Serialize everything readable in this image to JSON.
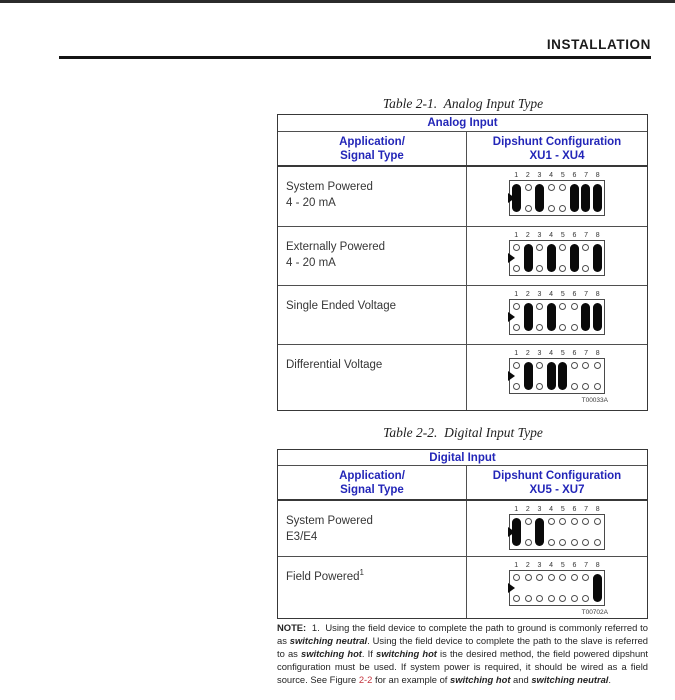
{
  "page": {
    "header": "INSTALLATION"
  },
  "colors": {
    "header_blue": "#2326b8",
    "link_red": "#c2343d",
    "ink": "#2e2e2e"
  },
  "tables": [
    {
      "caption": "Table 2-1.  Analog Input Type",
      "title": "Analog Input",
      "col1_header": [
        "Application/",
        "Signal Type"
      ],
      "col2_header": [
        "Dipshunt Configuration",
        "XU1 - XU4"
      ],
      "pin_numbers": [
        "1",
        "2",
        "3",
        "4",
        "5",
        "6",
        "7",
        "8"
      ],
      "rows": [
        {
          "label": [
            "System Powered",
            "4 - 20 mA"
          ],
          "pins": [
            1,
            0,
            1,
            0,
            0,
            1,
            1,
            1
          ],
          "artwork": ""
        },
        {
          "label": [
            "Externally Powered",
            "4 - 20 mA"
          ],
          "pins": [
            0,
            1,
            0,
            1,
            0,
            1,
            0,
            1
          ],
          "artwork": ""
        },
        {
          "label": [
            "Single Ended Voltage"
          ],
          "pins": [
            0,
            1,
            0,
            1,
            0,
            0,
            1,
            1
          ],
          "artwork": ""
        },
        {
          "label": [
            "Differential Voltage"
          ],
          "pins": [
            0,
            1,
            0,
            1,
            1,
            0,
            0,
            0
          ],
          "artwork": "T00033A"
        }
      ]
    },
    {
      "caption": "Table 2-2.  Digital Input Type",
      "title": "Digital Input",
      "col1_header": [
        "Application/",
        "Signal Type"
      ],
      "col2_header": [
        "Dipshunt Configuration",
        "XU5 - XU7"
      ],
      "pin_numbers": [
        "1",
        "2",
        "3",
        "4",
        "5",
        "6",
        "7",
        "8"
      ],
      "rows": [
        {
          "label": [
            "System Powered",
            "E3/E4"
          ],
          "pins": [
            1,
            0,
            1,
            0,
            0,
            0,
            0,
            0
          ],
          "artwork": ""
        },
        {
          "label": [
            {
              "text": "Field Powered",
              "sup": "1"
            }
          ],
          "pins": [
            0,
            0,
            0,
            0,
            0,
            0,
            0,
            1
          ],
          "artwork": "T00702A"
        }
      ]
    }
  ],
  "note": {
    "segments": [
      {
        "t": "NOTE:",
        "s": "bold"
      },
      {
        "t": "  1.  Using the field device to complete the path to ground is commonly referred to as ",
        "s": "plain"
      },
      {
        "t": "switching neutral",
        "s": "bi"
      },
      {
        "t": ". Using the field device to complete the path to the slave is referred to as ",
        "s": "plain"
      },
      {
        "t": "switching hot",
        "s": "bi"
      },
      {
        "t": ". If ",
        "s": "plain"
      },
      {
        "t": "switching hot",
        "s": "bi"
      },
      {
        "t": " is the desired method, the field powered dipshunt configuration must be used. If system power is required, it should be wired as a field source. See Figure ",
        "s": "plain"
      },
      {
        "t": "2-2",
        "s": "red"
      },
      {
        "t": " for an example of ",
        "s": "plain"
      },
      {
        "t": "switching hot",
        "s": "bi"
      },
      {
        "t": " and ",
        "s": "plain"
      },
      {
        "t": "switching neutral",
        "s": "bi"
      },
      {
        "t": ".",
        "s": "plain"
      }
    ]
  }
}
